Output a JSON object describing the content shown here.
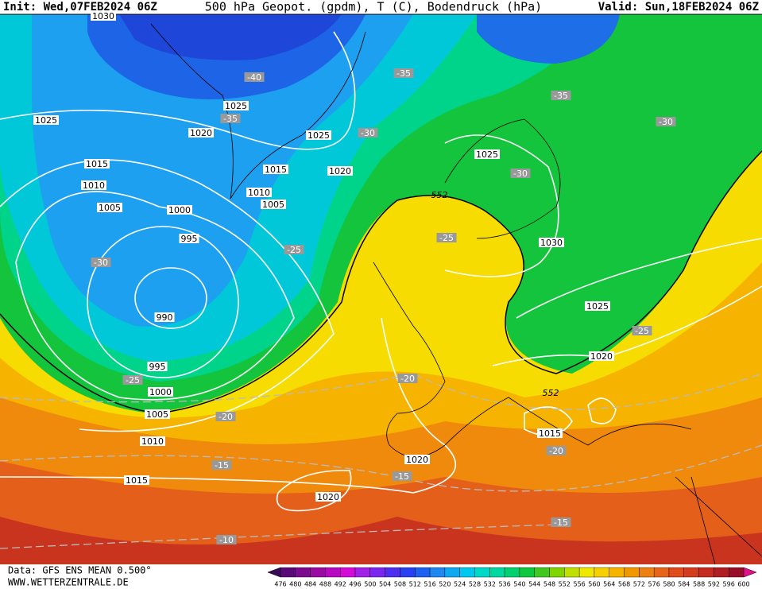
{
  "header": {
    "init": "Init: Wed,07FEB2024 06Z",
    "title": "500 hPa Geopot. (gpdm), T (C), Bodendruck (hPa)",
    "valid": "Valid: Sun,18FEB2024 06Z"
  },
  "map": {
    "isobar_labels": [
      "1030",
      "1025",
      "1025",
      "1020",
      "1015",
      "1010",
      "1005",
      "1000",
      "995",
      "990",
      "995",
      "1000",
      "1005",
      "1010",
      "1015",
      "1025",
      "1015",
      "1020",
      "1010",
      "1005",
      "1025",
      "1030",
      "1025",
      "1020",
      "1015",
      "1020",
      "1020"
    ],
    "temperature_labels": [
      "-40",
      "-35",
      "-35",
      "-30",
      "-35",
      "-30",
      "-30",
      "-25",
      "-25",
      "-30",
      "-25",
      "-20",
      "-25",
      "-20",
      "-20",
      "-15",
      "-15",
      "-15",
      "-10"
    ],
    "geopotential_labels": [
      "552",
      "552"
    ]
  },
  "colorbar": {
    "labels": [
      476,
      480,
      484,
      488,
      492,
      496,
      500,
      504,
      508,
      512,
      516,
      520,
      524,
      528,
      532,
      536,
      540,
      544,
      548,
      552,
      556,
      560,
      564,
      568,
      572,
      576,
      580,
      584,
      588,
      592,
      596,
      600
    ]
  },
  "footer": {
    "source": "Data: GFS ENS MEAN 0.500°",
    "site": "WWW.WETTERZENTRALE.DE"
  }
}
